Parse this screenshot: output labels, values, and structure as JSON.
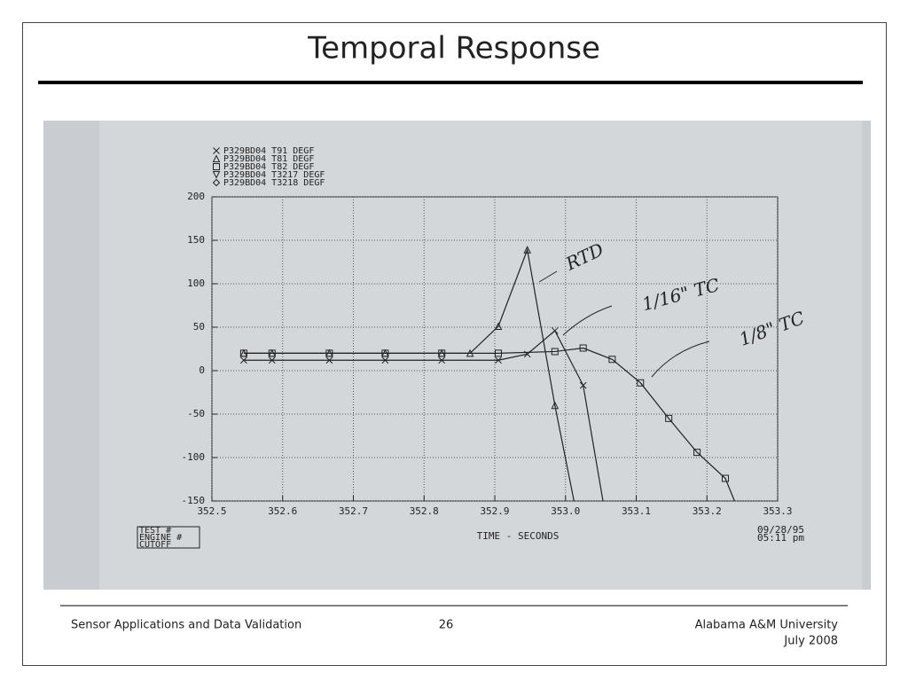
{
  "slide": {
    "title": "Temporal Response",
    "footer_left": "Sensor Applications and Data Validation",
    "page_number": "26",
    "footer_right": [
      "Alabama A&M University",
      "July 2008"
    ]
  },
  "chart_data": {
    "type": "line",
    "xlabel": "TIME - SECONDS",
    "stamp": [
      "TEST #",
      "ENGINE #",
      "CUTOFF"
    ],
    "date": "09/28/95",
    "time": "05:11 pm",
    "xlim": [
      352.5,
      353.3
    ],
    "xticks": [
      352.5,
      352.6,
      352.7,
      352.8,
      352.9,
      {
        "value": 353,
        "label": "353.0"
      },
      353.1,
      353.2,
      353.3
    ],
    "ylim": [
      -150,
      200
    ],
    "yticks": [
      -150,
      -100,
      -50,
      0,
      50,
      100,
      150,
      200
    ],
    "grid": true,
    "series": [
      {
        "name": "P329BD04 T91 DEGF",
        "marker": "x",
        "color": "#222",
        "x": [
          352.545,
          352.585,
          352.666,
          352.745,
          352.825,
          352.905,
          352.946,
          352.985,
          353.025,
          353.053
        ],
        "values": [
          12,
          12,
          12,
          12,
          12,
          12,
          19,
          46,
          -17,
          -150
        ]
      },
      {
        "name": "P329BD04 T81 DEGF",
        "marker": "triangle-up",
        "color": "#222",
        "x": [
          352.545,
          352.585,
          352.666,
          352.745,
          352.825,
          352.865,
          352.905,
          352.946,
          352.985,
          353.012
        ],
        "values": [
          20,
          20,
          20,
          20,
          20,
          20,
          51,
          139,
          -40,
          -150
        ]
      },
      {
        "name": "P329BD04 T82 DEGF",
        "marker": "square",
        "color": "#222",
        "x": [
          352.545,
          352.585,
          352.666,
          352.745,
          352.825,
          352.905,
          352.985,
          353.025,
          353.066,
          353.106,
          353.146,
          353.186,
          353.226,
          353.239
        ],
        "values": [
          20,
          20,
          20,
          20,
          20,
          20,
          22,
          26,
          13,
          -14,
          -55,
          -94,
          -124,
          -150
        ]
      },
      {
        "name": "P329BD04 T3217 DEGF",
        "marker": "triangle-down",
        "color": "#222",
        "x": [],
        "values": []
      },
      {
        "name": "P329BD04 T3218 DEGF",
        "marker": "diamond",
        "color": "#222",
        "x": [],
        "values": []
      }
    ],
    "annotations": [
      "RTD",
      "1/16\" TC",
      "1/8\" TC"
    ]
  }
}
